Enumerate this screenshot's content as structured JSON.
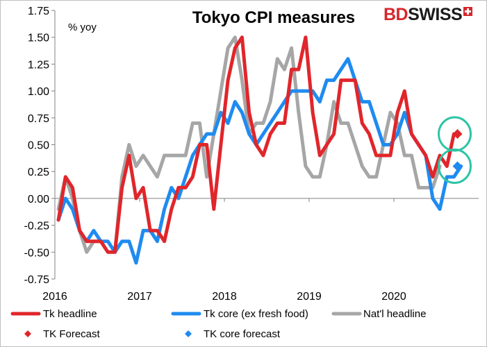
{
  "brand": {
    "part1": "BD",
    "part2": "SWISS"
  },
  "chart_data": {
    "type": "line",
    "title": "Tokyo CPI measures",
    "unit_label": "% yoy",
    "ylim": [
      -0.75,
      1.75
    ],
    "y_ticks": [
      "1.75",
      "1.50",
      "1.25",
      "1.00",
      "0.75",
      "0.50",
      "0.25",
      "0.00",
      "-0.25",
      "-0.50",
      "-0.75"
    ],
    "x_ticks": [
      "2016",
      "2017",
      "2018",
      "2019",
      "2020"
    ],
    "grid": false,
    "legend_position": "bottom",
    "series": [
      {
        "name": "Tk headline",
        "color": "#e0262b",
        "values": [
          -0.2,
          0.2,
          0.1,
          -0.3,
          -0.4,
          -0.4,
          -0.4,
          -0.5,
          -0.5,
          0.1,
          0.4,
          0.0,
          0.1,
          -0.3,
          -0.3,
          -0.4,
          -0.1,
          0.1,
          0.1,
          0.2,
          0.5,
          0.5,
          -0.1,
          0.5,
          1.1,
          1.4,
          1.5,
          0.8,
          0.5,
          0.4,
          0.6,
          0.7,
          0.7,
          1.2,
          1.2,
          1.5,
          0.8,
          0.4,
          0.5,
          0.6,
          1.1,
          1.1,
          1.1,
          0.7,
          0.6,
          0.4,
          0.4,
          0.4,
          0.8,
          1.0,
          0.6,
          0.5,
          0.4,
          0.2,
          0.4,
          0.3,
          0.6
        ]
      },
      {
        "name": "Tk core (ex fresh food)",
        "color": "#1f8bf0",
        "values": [
          -0.2,
          0.0,
          -0.1,
          -0.3,
          -0.4,
          -0.3,
          -0.4,
          -0.4,
          -0.5,
          -0.4,
          -0.4,
          -0.6,
          -0.3,
          -0.3,
          -0.4,
          -0.1,
          0.1,
          0.0,
          0.2,
          0.4,
          0.5,
          0.6,
          0.6,
          0.8,
          0.7,
          0.9,
          0.8,
          0.6,
          0.5,
          0.6,
          0.7,
          0.8,
          0.9,
          1.0,
          1.0,
          1.0,
          1.0,
          0.9,
          1.1,
          1.1,
          1.2,
          1.3,
          1.1,
          0.9,
          0.9,
          0.7,
          0.5,
          0.5,
          0.6,
          0.8,
          0.6,
          0.5,
          0.4,
          0.0,
          -0.1,
          0.2,
          0.2,
          0.3
        ]
      },
      {
        "name": "Nat'l headline",
        "color": "#a6a6a6",
        "values": [
          -0.1,
          0.2,
          0.0,
          -0.3,
          -0.5,
          -0.4,
          -0.4,
          -0.5,
          -0.5,
          0.2,
          0.5,
          0.3,
          0.4,
          0.3,
          0.2,
          0.4,
          0.4,
          0.4,
          0.4,
          0.7,
          0.7,
          0.2,
          0.6,
          1.0,
          1.4,
          1.5,
          1.1,
          0.6,
          0.7,
          0.7,
          0.9,
          1.3,
          1.2,
          1.4,
          0.8,
          0.3,
          0.2,
          0.2,
          0.5,
          0.9,
          0.7,
          0.7,
          0.5,
          0.3,
          0.2,
          0.2,
          0.5,
          0.8,
          0.7,
          0.4,
          0.4,
          0.1,
          0.1,
          0.1,
          0.3
        ]
      },
      {
        "name": "TK Forecast",
        "color": "#e0262b",
        "marker": "diamond",
        "points": [
          [
            56.5,
            0.6
          ]
        ]
      },
      {
        "name": "TK core forecast",
        "color": "#1f8bf0",
        "marker": "diamond",
        "points": [
          [
            56.5,
            0.3
          ]
        ]
      }
    ],
    "annotations": [
      {
        "type": "circle",
        "color": "#2ec4a6",
        "around_series": "TK Forecast"
      },
      {
        "type": "circle",
        "color": "#2ec4a6",
        "around_series": "TK core forecast"
      }
    ]
  }
}
